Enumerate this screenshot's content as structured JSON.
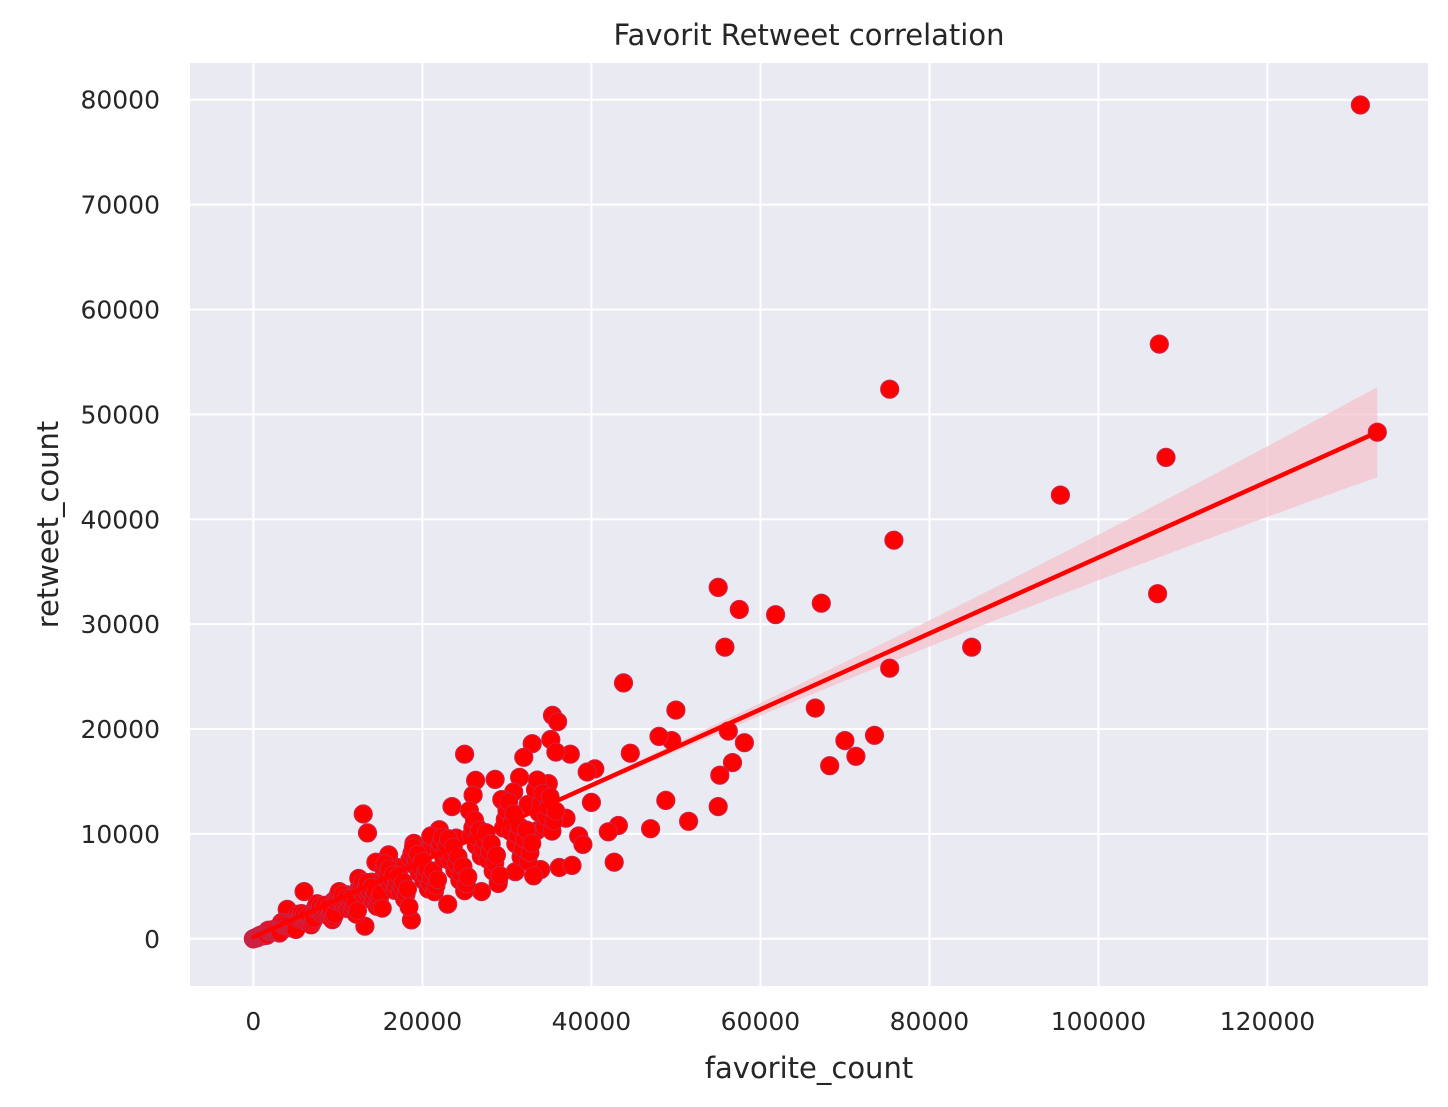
{
  "chart_data": {
    "type": "scatter",
    "title": "Favorit Retweet correlation",
    "xlabel": "favorite_count",
    "ylabel": "retweet_count",
    "xlim": [
      -7500,
      139000
    ],
    "ylim": [
      -4500,
      83500
    ],
    "xticks": [
      0,
      20000,
      40000,
      60000,
      80000,
      100000,
      120000
    ],
    "yticks": [
      0,
      10000,
      20000,
      30000,
      40000,
      50000,
      60000,
      70000,
      80000
    ],
    "grid": true,
    "background_color": "#eaeaf2",
    "marker_color": "#ff0000",
    "line_color": "#ff0000",
    "band_color": "#f4c3cc",
    "regression": {
      "x_range": [
        0,
        133000
      ],
      "y_at_start": 150,
      "y_at_end": 48300,
      "ci_low_at_end": 44000,
      "ci_high_at_end": 52600
    },
    "series": [
      {
        "points": [
          [
            131000,
            79500
          ],
          [
            107200,
            56700
          ],
          [
            75300,
            52400
          ],
          [
            133000,
            48300
          ],
          [
            108000,
            45900
          ],
          [
            95500,
            42300
          ],
          [
            75800,
            38000
          ],
          [
            107000,
            32900
          ],
          [
            55000,
            33500
          ],
          [
            57500,
            31400
          ],
          [
            61800,
            30900
          ],
          [
            67200,
            32000
          ],
          [
            55800,
            27800
          ],
          [
            85000,
            27800
          ],
          [
            75300,
            25800
          ],
          [
            43800,
            24400
          ],
          [
            66500,
            22000
          ],
          [
            73500,
            19400
          ],
          [
            70000,
            18900
          ],
          [
            71300,
            17400
          ],
          [
            68200,
            16500
          ],
          [
            58100,
            18700
          ],
          [
            56200,
            19800
          ],
          [
            56700,
            16800
          ],
          [
            55200,
            15600
          ],
          [
            55000,
            12600
          ],
          [
            51500,
            11200
          ],
          [
            50000,
            21800
          ],
          [
            49500,
            18900
          ],
          [
            48800,
            13200
          ],
          [
            48000,
            19300
          ],
          [
            47000,
            10500
          ],
          [
            44600,
            17700
          ],
          [
            43200,
            10800
          ],
          [
            42700,
            7300
          ],
          [
            40400,
            16200
          ],
          [
            39500,
            15900
          ],
          [
            40000,
            13000
          ],
          [
            38500,
            9800
          ],
          [
            37500,
            17600
          ],
          [
            37000,
            11500
          ],
          [
            35400,
            21300
          ],
          [
            36000,
            20700
          ],
          [
            35200,
            19000
          ],
          [
            35800,
            17800
          ],
          [
            34900,
            14800
          ],
          [
            33800,
            12100
          ],
          [
            33000,
            18600
          ],
          [
            32000,
            17300
          ],
          [
            31500,
            15400
          ],
          [
            30800,
            14000
          ],
          [
            29500,
            13200
          ],
          [
            28600,
            15200
          ],
          [
            26300,
            15100
          ],
          [
            26000,
            13700
          ],
          [
            25000,
            17600
          ],
          [
            23500,
            12600
          ],
          [
            22000,
            10400
          ],
          [
            13000,
            11900
          ],
          [
            13500,
            10100
          ],
          [
            20000,
            8500
          ],
          [
            18500,
            7500
          ],
          [
            17000,
            6800
          ],
          [
            15500,
            6200
          ],
          [
            14000,
            5400
          ],
          [
            12500,
            4800
          ],
          [
            11000,
            4200
          ],
          [
            9500,
            3600
          ],
          [
            8000,
            3000
          ],
          [
            6000,
            4500
          ],
          [
            6500,
            2300
          ],
          [
            5000,
            1800
          ],
          [
            4000,
            2800
          ],
          [
            3500,
            1300
          ],
          [
            2500,
            900
          ],
          [
            1500,
            500
          ],
          [
            800,
            250
          ],
          [
            300,
            100
          ],
          [
            0,
            0
          ],
          [
            13200,
            1200
          ],
          [
            18700,
            1800
          ],
          [
            23000,
            3300
          ],
          [
            27000,
            4500
          ],
          [
            29000,
            5500
          ],
          [
            31000,
            6400
          ],
          [
            34000,
            6600
          ],
          [
            36200,
            6800
          ],
          [
            37700,
            7000
          ],
          [
            24000,
            9600
          ],
          [
            21000,
            9800
          ],
          [
            19000,
            9100
          ],
          [
            16000,
            8000
          ],
          [
            14500,
            7300
          ],
          [
            26500,
            10600
          ],
          [
            30000,
            11200
          ],
          [
            32500,
            12800
          ],
          [
            28000,
            8300
          ],
          [
            33500,
            10300
          ],
          [
            39000,
            9000
          ],
          [
            42000,
            10200
          ]
        ]
      }
    ]
  }
}
